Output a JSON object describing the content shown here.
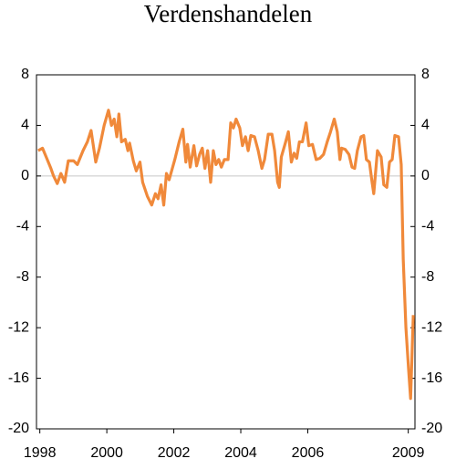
{
  "chart_data": {
    "type": "line",
    "title": "Verdenshandelen",
    "x": [
      1997.95,
      1998.08,
      1998.19,
      1998.33,
      1998.41,
      1998.52,
      1998.63,
      1998.74,
      1998.85,
      1999.01,
      1999.12,
      1999.29,
      1999.42,
      1999.53,
      1999.67,
      1999.78,
      1999.92,
      2000.05,
      2000.14,
      2000.22,
      2000.3,
      2000.36,
      2000.44,
      2000.55,
      2000.63,
      2000.68,
      2000.79,
      2000.88,
      2000.99,
      2001.07,
      2001.21,
      2001.34,
      2001.45,
      2001.53,
      2001.62,
      2001.7,
      2001.78,
      2001.86,
      2002.03,
      2002.16,
      2002.27,
      2002.36,
      2002.41,
      2002.49,
      2002.6,
      2002.68,
      2002.77,
      2002.85,
      2002.93,
      2003.01,
      2003.1,
      2003.18,
      2003.26,
      2003.34,
      2003.42,
      2003.51,
      2003.62,
      2003.7,
      2003.78,
      2003.86,
      2003.97,
      2004.05,
      2004.14,
      2004.22,
      2004.3,
      2004.41,
      2004.52,
      2004.63,
      2004.71,
      2004.82,
      2004.93,
      2005.01,
      2005.1,
      2005.15,
      2005.21,
      2005.34,
      2005.42,
      2005.51,
      2005.59,
      2005.67,
      2005.75,
      2005.84,
      2005.95,
      2006.03,
      2006.14,
      2006.25,
      2006.36,
      2006.47,
      2006.58,
      2006.68,
      2006.79,
      2006.88,
      2006.96,
      2007.01,
      2007.12,
      2007.23,
      2007.32,
      2007.4,
      2007.48,
      2007.59,
      2007.67,
      2007.75,
      2007.84,
      2007.92,
      2007.97,
      2008.08,
      2008.19,
      2008.27,
      2008.36,
      2008.44,
      2008.52,
      2008.6,
      2008.71,
      2008.79,
      2008.85,
      2008.93,
      2009.01,
      2009.07,
      2009.15
    ],
    "series": [
      {
        "color": "#f0893a",
        "values": [
          2.0,
          2.2,
          1.5,
          0.6,
          0,
          -0.6,
          0.2,
          -0.5,
          1.2,
          1.2,
          0.9,
          2.0,
          2.7,
          3.6,
          1.1,
          2.2,
          4.0,
          5.2,
          4.0,
          4.5,
          3.1,
          4.9,
          2.7,
          2.9,
          2.0,
          2.6,
          1.2,
          0.4,
          1.1,
          -0.5,
          -1.6,
          -2.3,
          -1.4,
          -1.8,
          -0.7,
          -2.3,
          0.2,
          -0.3,
          1.3,
          2.7,
          3.7,
          1.1,
          2.5,
          0.7,
          2.4,
          0.8,
          1.7,
          2.2,
          0.6,
          2.0,
          -0.5,
          2.0,
          0.9,
          1.3,
          0.7,
          1.3,
          1.3,
          4.2,
          3.8,
          4.5,
          3.8,
          2.4,
          3.1,
          2.0,
          3.2,
          3.1,
          2.0,
          0.6,
          1.3,
          3.3,
          3.3,
          2.0,
          -0.5,
          -0.9,
          1.5,
          2.7,
          3.5,
          1.1,
          1.8,
          1.4,
          2.7,
          2.7,
          4.2,
          2.4,
          2.5,
          1.3,
          1.4,
          1.7,
          2.7,
          3.5,
          4.5,
          3.5,
          1.3,
          2.2,
          2.1,
          1.7,
          0.7,
          0.6,
          2.0,
          3.1,
          3.2,
          1.3,
          1.1,
          -0.5,
          -1.4,
          2.0,
          1.5,
          -0.7,
          -0.9,
          1.1,
          1.3,
          3.2,
          3.1,
          0.9,
          -6.6,
          -12.0,
          -15.3,
          -17.6,
          -11.0
        ]
      }
    ],
    "xlim": [
      1997.9,
      2009.2
    ],
    "xticks": [
      1998,
      2000,
      2002,
      2004,
      2006,
      2009
    ],
    "ylim": [
      -20,
      8
    ],
    "yticks": [
      -20,
      -16,
      -12,
      -8,
      -4,
      0,
      4,
      8
    ],
    "y2lim": [
      -20,
      8
    ],
    "y2ticks": [
      -20,
      -16,
      -12,
      -8,
      -4,
      0,
      4,
      8
    ]
  }
}
